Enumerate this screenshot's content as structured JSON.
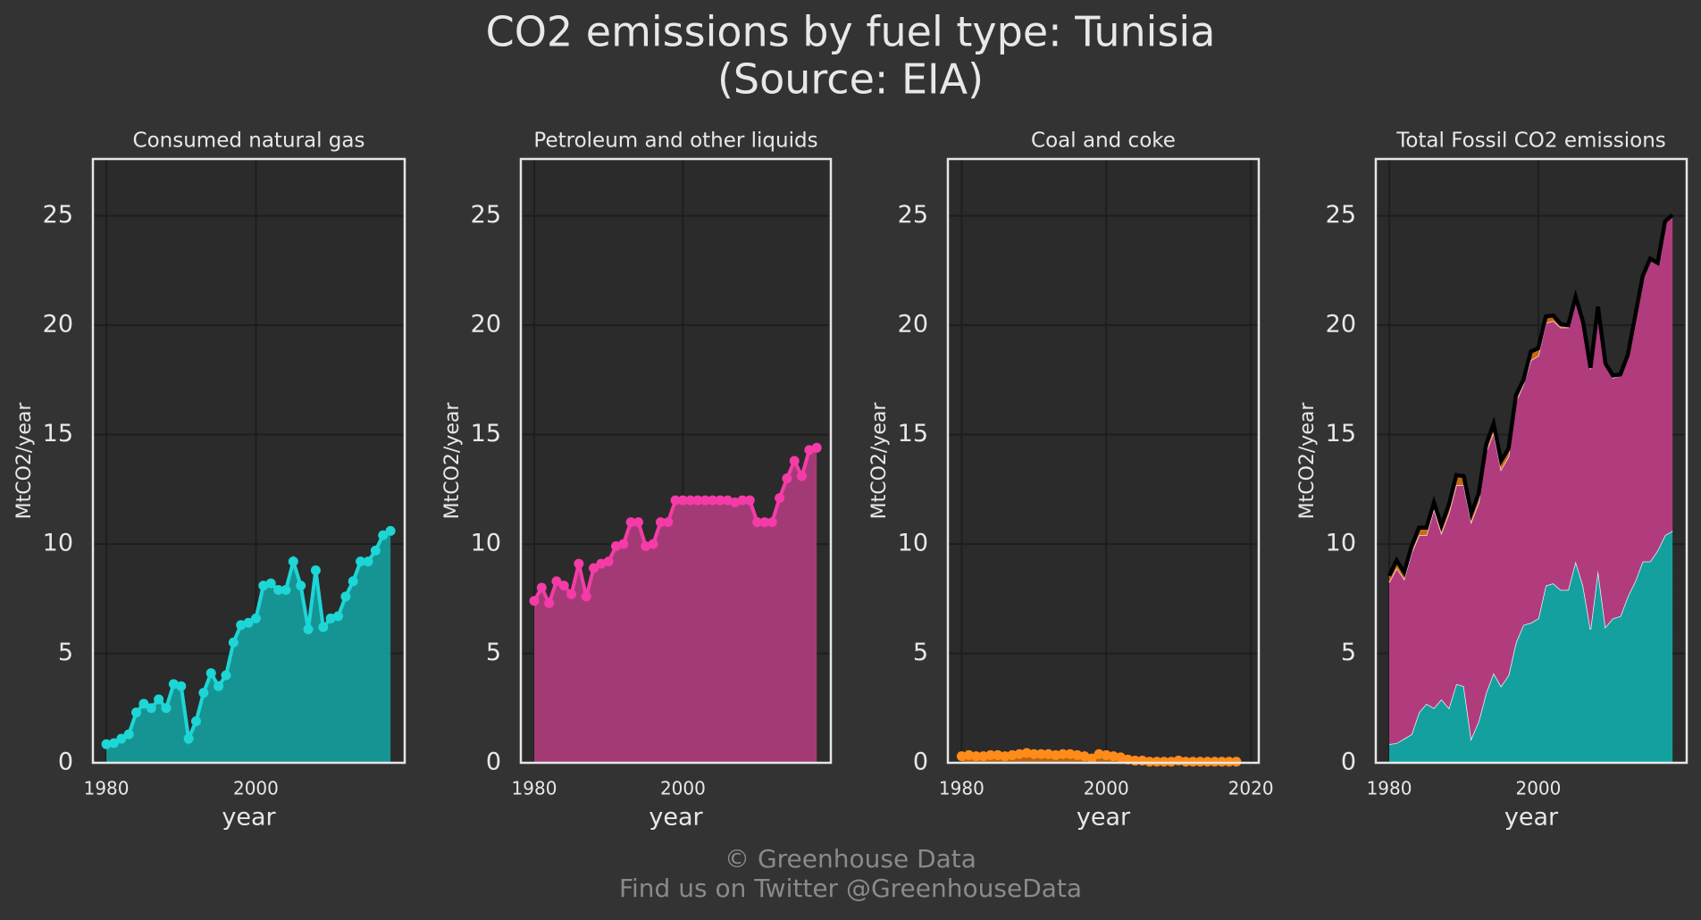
{
  "title": "CO2 emissions by fuel type: Tunisia",
  "subtitle": "(Source: EIA)",
  "footer": [
    "© Greenhouse Data",
    "Find us on Twitter @GreenhouseData"
  ],
  "chart_data": [
    {
      "type": "line",
      "title": "Consumed natural gas",
      "xlabel": "year",
      "ylabel": "MtCO2/year",
      "x": [
        1980,
        1981,
        1982,
        1983,
        1984,
        1985,
        1986,
        1987,
        1988,
        1989,
        1990,
        1991,
        1992,
        1993,
        1994,
        1995,
        1996,
        1997,
        1998,
        1999,
        2000,
        2001,
        2002,
        2003,
        2004,
        2005,
        2006,
        2007,
        2008,
        2009,
        2010,
        2011,
        2012,
        2013,
        2014,
        2015,
        2016,
        2017,
        2018
      ],
      "series": [
        {
          "color": "#1dd6d6",
          "fill": "#14a09f",
          "values": [
            0.85,
            0.9,
            1.1,
            1.3,
            2.3,
            2.7,
            2.5,
            2.9,
            2.5,
            3.6,
            3.5,
            1.1,
            1.9,
            3.2,
            4.1,
            3.5,
            4.0,
            5.5,
            6.3,
            6.4,
            6.6,
            8.1,
            8.2,
            7.9,
            7.9,
            9.2,
            8.1,
            6.1,
            8.8,
            6.2,
            6.6,
            6.7,
            7.6,
            8.3,
            9.2,
            9.2,
            9.7,
            10.4,
            10.6
          ]
        }
      ],
      "xlim": [
        1978.2,
        2019.9
      ],
      "xticks": [
        1980,
        2000
      ],
      "ylim": [
        0,
        27.6
      ],
      "yticks": [
        0,
        5,
        10,
        15,
        20,
        25
      ],
      "grid": true
    },
    {
      "type": "line",
      "title": "Petroleum and other liquids",
      "xlabel": "year",
      "ylabel": "MtCO2/year",
      "x": [
        1980,
        1981,
        1982,
        1983,
        1984,
        1985,
        1986,
        1987,
        1988,
        1989,
        1990,
        1991,
        1992,
        1993,
        1994,
        1995,
        1996,
        1997,
        1998,
        1999,
        2000,
        2001,
        2002,
        2003,
        2004,
        2005,
        2006,
        2007,
        2008,
        2009,
        2010,
        2011,
        2012,
        2013,
        2014,
        2015,
        2016,
        2017,
        2018
      ],
      "series": [
        {
          "color": "#f53ba7",
          "fill": "#b03c7d",
          "values": [
            7.4,
            8.0,
            7.3,
            8.3,
            8.1,
            7.7,
            9.1,
            7.6,
            8.9,
            9.1,
            9.2,
            9.9,
            10.0,
            11.0,
            11.0,
            9.9,
            10.0,
            11.0,
            11.0,
            12.0,
            12.0,
            12.0,
            12.0,
            12.0,
            12.0,
            12.0,
            12.0,
            11.9,
            12.0,
            12.0,
            11.0,
            11.0,
            11.0,
            12.1,
            13.0,
            13.8,
            13.1,
            14.3,
            14.4
          ]
        }
      ],
      "xlim": [
        1978.2,
        2019.9
      ],
      "xticks": [
        1980,
        2000
      ],
      "ylim": [
        0,
        27.6
      ],
      "yticks": [
        0,
        5,
        10,
        15,
        20,
        25
      ],
      "grid": true
    },
    {
      "type": "line",
      "title": "Coal and coke",
      "xlabel": "year",
      "ylabel": "MtCO2/year",
      "x": [
        1980,
        1981,
        1982,
        1983,
        1984,
        1985,
        1986,
        1987,
        1988,
        1989,
        1990,
        1991,
        1992,
        1993,
        1994,
        1995,
        1996,
        1997,
        1998,
        1999,
        2000,
        2001,
        2002,
        2003,
        2004,
        2005,
        2006,
        2007,
        2008,
        2009,
        2010,
        2011,
        2012,
        2013,
        2014,
        2015,
        2016,
        2017,
        2018
      ],
      "series": [
        {
          "color": "#ff8c1a",
          "fill": "#c86a10",
          "values": [
            0.3,
            0.35,
            0.3,
            0.3,
            0.35,
            0.35,
            0.3,
            0.35,
            0.4,
            0.45,
            0.4,
            0.4,
            0.4,
            0.35,
            0.4,
            0.4,
            0.35,
            0.3,
            0.2,
            0.4,
            0.35,
            0.3,
            0.25,
            0.15,
            0.1,
            0.1,
            0.05,
            0.05,
            0.05,
            0.05,
            0.1,
            0.05,
            0.05,
            0.05,
            0.05,
            0.05,
            0.05,
            0.05,
            0.05
          ]
        }
      ],
      "xlim": [
        1978.1,
        2021.1
      ],
      "xticks": [
        1980,
        2000,
        2020
      ],
      "ylim": [
        0,
        27.6
      ],
      "yticks": [
        0,
        5,
        10,
        15,
        20,
        25
      ],
      "grid": true
    },
    {
      "type": "stacked_area",
      "title": "Total Fossil CO2 emissions",
      "xlabel": "year",
      "ylabel": "MtCO2/year",
      "x": [
        1980,
        1981,
        1982,
        1983,
        1984,
        1985,
        1986,
        1987,
        1988,
        1989,
        1990,
        1991,
        1992,
        1993,
        1994,
        1995,
        1996,
        1997,
        1998,
        1999,
        2000,
        2001,
        2002,
        2003,
        2004,
        2005,
        2006,
        2007,
        2008,
        2009,
        2010,
        2011,
        2012,
        2013,
        2014,
        2015,
        2016,
        2017,
        2018
      ],
      "series": [
        {
          "color": "#14a09f",
          "edge": "#e8f8f8",
          "values": [
            0.85,
            0.9,
            1.1,
            1.3,
            2.3,
            2.7,
            2.5,
            2.9,
            2.5,
            3.6,
            3.5,
            1.1,
            1.9,
            3.2,
            4.1,
            3.5,
            4.0,
            5.5,
            6.3,
            6.4,
            6.6,
            8.1,
            8.2,
            7.9,
            7.9,
            9.2,
            8.1,
            6.1,
            8.8,
            6.2,
            6.6,
            6.7,
            7.6,
            8.3,
            9.2,
            9.2,
            9.7,
            10.4,
            10.6
          ]
        },
        {
          "color": "#b03c7d",
          "edge": "#f5e0ec",
          "values": [
            7.4,
            8.0,
            7.3,
            8.3,
            8.1,
            7.7,
            9.1,
            7.6,
            8.9,
            9.1,
            9.2,
            9.9,
            10.0,
            11.0,
            11.0,
            9.9,
            10.0,
            11.0,
            11.0,
            12.0,
            12.0,
            12.0,
            12.0,
            12.0,
            12.0,
            12.0,
            12.0,
            11.9,
            12.0,
            12.0,
            11.0,
            11.0,
            11.0,
            12.1,
            13.0,
            13.8,
            13.1,
            14.3,
            14.4
          ]
        },
        {
          "color": "#c86a10",
          "edge": "#ffb060",
          "values": [
            0.3,
            0.35,
            0.3,
            0.3,
            0.35,
            0.35,
            0.3,
            0.35,
            0.4,
            0.45,
            0.4,
            0.4,
            0.4,
            0.35,
            0.4,
            0.4,
            0.35,
            0.3,
            0.2,
            0.4,
            0.35,
            0.3,
            0.25,
            0.15,
            0.1,
            0.1,
            0.05,
            0.05,
            0.05,
            0.05,
            0.1,
            0.05,
            0.05,
            0.05,
            0.05,
            0.05,
            0.05,
            0.05,
            0.05
          ]
        }
      ],
      "total": {
        "color": "#000000",
        "values": [
          8.55,
          9.25,
          8.7,
          9.9,
          10.75,
          10.75,
          11.9,
          10.85,
          11.8,
          13.15,
          13.1,
          11.4,
          12.3,
          14.55,
          15.5,
          13.8,
          14.35,
          16.8,
          17.5,
          18.8,
          18.95,
          20.4,
          20.45,
          20.05,
          20.0,
          21.3,
          20.15,
          18.05,
          20.85,
          18.25,
          17.7,
          17.75,
          18.65,
          20.45,
          22.25,
          23.05,
          22.85,
          24.75,
          25.05
        ]
      },
      "xlim": [
        1978.2,
        2019.9
      ],
      "xticks": [
        1980,
        2000
      ],
      "ylim": [
        0,
        27.6
      ],
      "yticks": [
        0,
        5,
        10,
        15,
        20,
        25
      ],
      "grid": true
    }
  ]
}
